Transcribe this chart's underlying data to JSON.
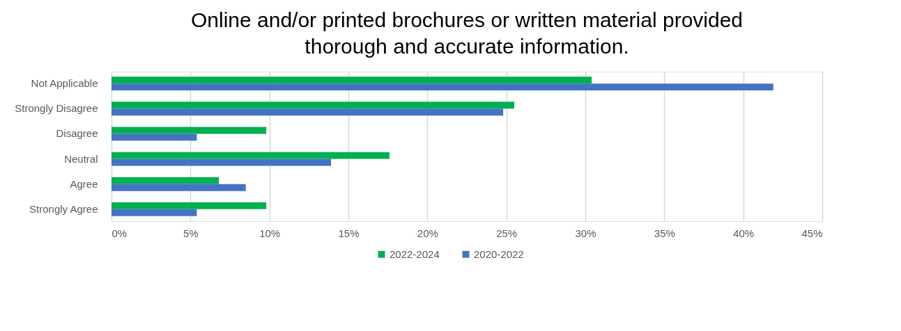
{
  "chart_data": {
    "type": "bar",
    "orientation": "horizontal",
    "title": "Online and/or printed brochures or written material provided thorough and accurate information.",
    "categories": [
      "Not Applicable",
      "Strongly Disagree",
      "Disagree",
      "Neutral",
      "Agree",
      "Strongly Agree"
    ],
    "series": [
      {
        "name": "2022-2024",
        "color": "#00b050",
        "values": [
          30.4,
          25.5,
          9.8,
          17.6,
          6.8,
          9.8
        ]
      },
      {
        "name": "2020-2022",
        "color": "#4472c4",
        "values": [
          41.9,
          24.8,
          5.4,
          13.9,
          8.5,
          5.4
        ]
      }
    ],
    "xlim": [
      0,
      45
    ],
    "xticks": [
      {
        "value": 0,
        "label": "0%"
      },
      {
        "value": 5,
        "label": "5%"
      },
      {
        "value": 10,
        "label": "10%"
      },
      {
        "value": 15,
        "label": "15%"
      },
      {
        "value": 20,
        "label": "20%"
      },
      {
        "value": 25,
        "label": "25%"
      },
      {
        "value": 30,
        "label": "30%"
      },
      {
        "value": 35,
        "label": "35%"
      },
      {
        "value": 40,
        "label": "40%"
      },
      {
        "value": 45,
        "label": "45%"
      }
    ],
    "grid": "x",
    "legend": "bottom"
  }
}
